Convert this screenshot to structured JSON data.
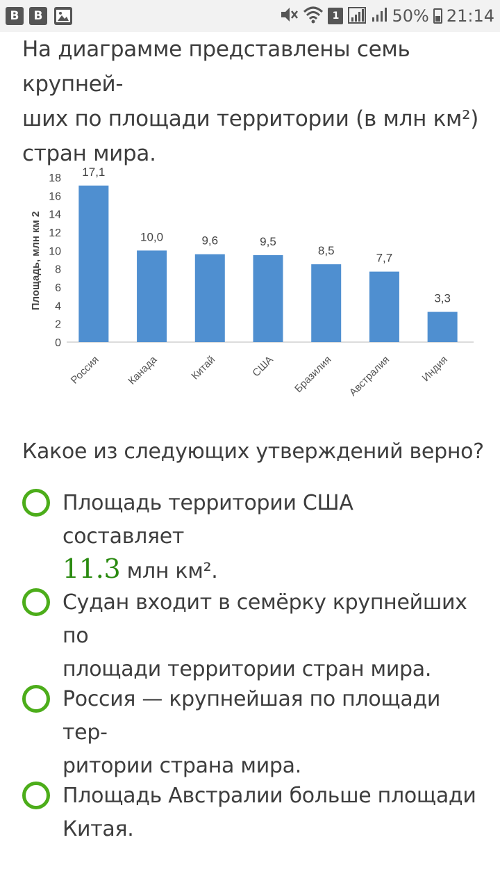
{
  "status_bar": {
    "apps": [
      "B",
      "B"
    ],
    "sim_label": "1",
    "battery": "50%",
    "time": "21:14"
  },
  "question": {
    "text_line1": "На диаграмме представлены семь крупней-",
    "text_line2": "ших по площади территории (в млн км²)",
    "text_line3": "стран мира."
  },
  "chart_data": {
    "type": "bar",
    "categories": [
      "Россия",
      "Канада",
      "Китай",
      "США",
      "Бразилия",
      "Австралия",
      "Индия"
    ],
    "values": [
      17.1,
      10.0,
      9.6,
      9.5,
      8.5,
      7.7,
      3.3
    ],
    "data_labels": [
      "17,1",
      "10,0",
      "9,6",
      "9,5",
      "8,5",
      "7,7",
      "3,3"
    ],
    "ylabel": "Площадь, млн км 2",
    "yticks": [
      0,
      2,
      4,
      6,
      8,
      10,
      12,
      14,
      16,
      18
    ],
    "ylim": [
      0,
      18
    ],
    "grid": false,
    "colors": {
      "bar": "#4f8fd0"
    }
  },
  "prompt": "Какое из следующих утверждений верно?",
  "options": [
    {
      "line1_before": "Площадь территории США составляет",
      "number": "11.3",
      "line2_after": " млн км²."
    },
    {
      "line1": "Судан входит в семёрку крупнейших по",
      "line2": "площади территории стран мира."
    },
    {
      "line1": "Россия — крупнейшая по площади тер-",
      "line2": "ритории страна мира."
    },
    {
      "line1": "Площадь Австралии больше площади",
      "line2": "Китая."
    }
  ],
  "colors": {
    "radio": "#4cad1a",
    "number": "#2a8a10"
  }
}
